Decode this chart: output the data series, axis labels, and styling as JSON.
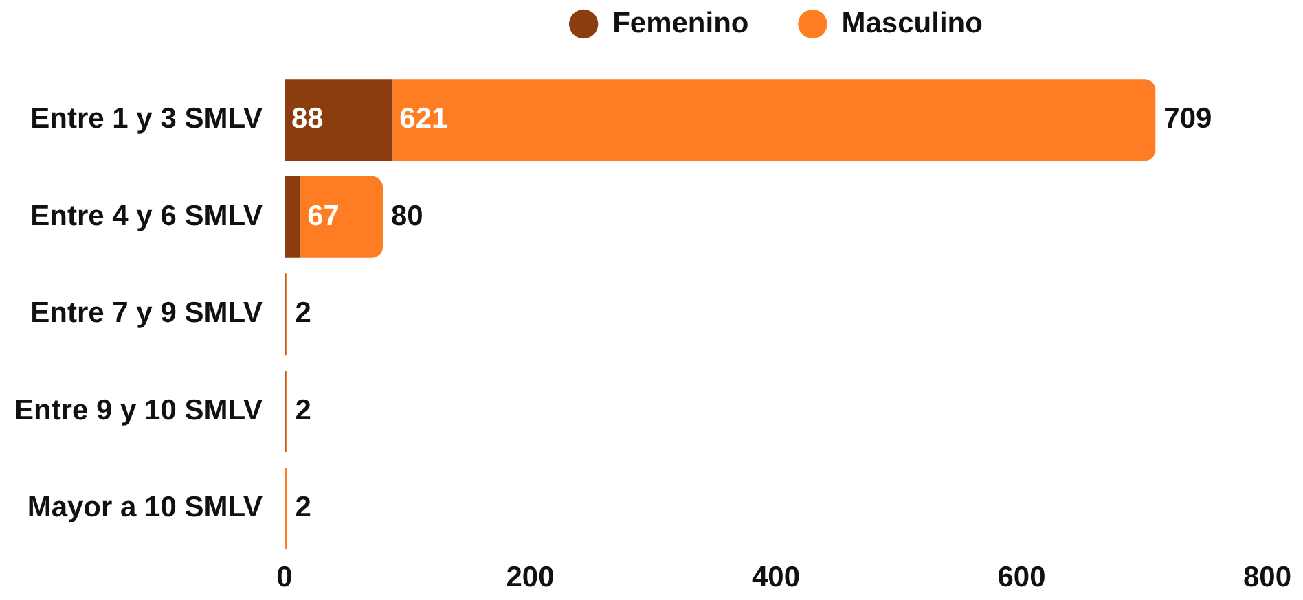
{
  "chart_data": {
    "type": "bar",
    "orientation": "horizontal",
    "stacked": true,
    "categories": [
      "Entre 1 y 3 SMLV",
      "Entre 4 y 6 SMLV",
      "Entre 7 y 9 SMLV",
      "Entre 9 y 10 SMLV",
      "Mayor a 10 SMLV"
    ],
    "series": [
      {
        "name": "Femenino",
        "color": "#8b3d10",
        "values": [
          88,
          13,
          1,
          1,
          0
        ],
        "value_labels": [
          "88",
          null,
          null,
          null,
          null
        ]
      },
      {
        "name": "Masculino",
        "color": "#fe7d22",
        "values": [
          621,
          67,
          1,
          1,
          2
        ],
        "value_labels": [
          "621",
          "67",
          null,
          null,
          null
        ]
      }
    ],
    "totals": [
      "709",
      "80",
      "2",
      "2",
      "2"
    ],
    "xlim": [
      0,
      800
    ],
    "xticks": [
      0,
      200,
      400,
      600,
      800
    ],
    "grid": false,
    "legend": "top"
  }
}
